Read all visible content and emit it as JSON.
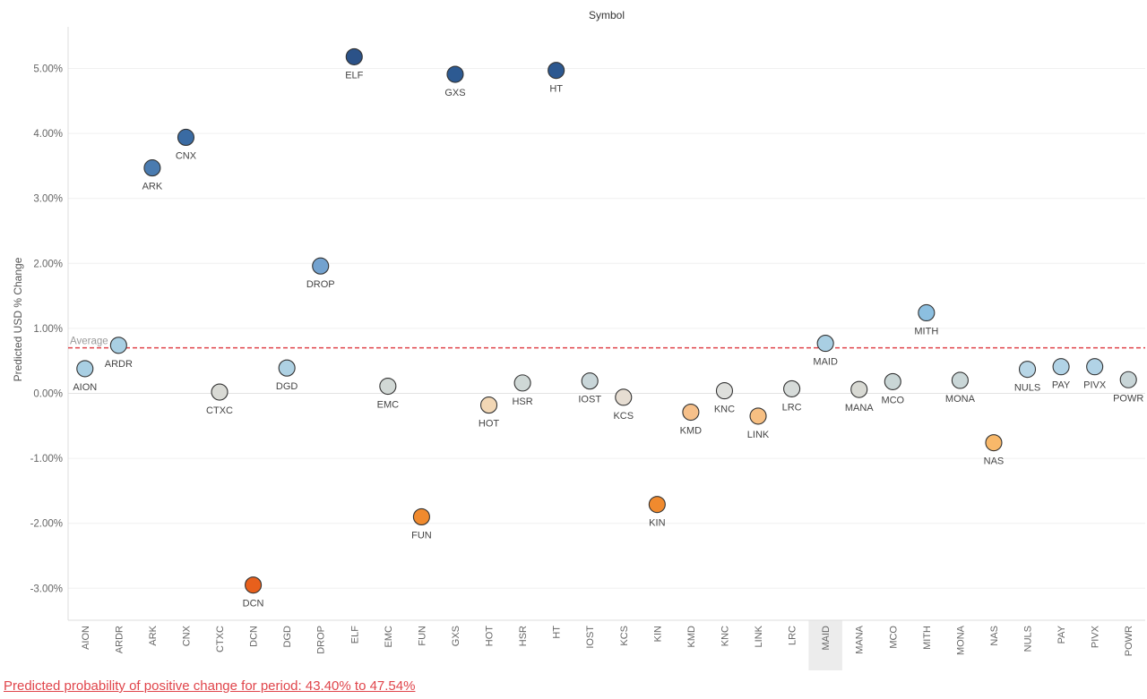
{
  "chart_data": {
    "type": "scatter",
    "title": "Symbol",
    "ylabel": "Predicted USD % Change",
    "xlabel": "",
    "ylim": [
      -3.5,
      5.6
    ],
    "yticks": [
      -3,
      -2,
      -1,
      0,
      1,
      2,
      3,
      4,
      5
    ],
    "ytick_labels": [
      "-3.00%",
      "-2.00%",
      "-1.00%",
      "0.00%",
      "1.00%",
      "2.00%",
      "3.00%",
      "4.00%",
      "5.00%"
    ],
    "grid": true,
    "categories": [
      "AION",
      "ARDR",
      "ARK",
      "CNX",
      "CTXC",
      "DCN",
      "DGD",
      "DROP",
      "ELF",
      "EMC",
      "FUN",
      "GXS",
      "HOT",
      "HSR",
      "HT",
      "IOST",
      "KCS",
      "KIN",
      "KMD",
      "KNC",
      "LINK",
      "LRC",
      "MAID",
      "MANA",
      "MCO",
      "MITH",
      "MONA",
      "NAS",
      "NULS",
      "PAY",
      "PIVX",
      "POWR"
    ],
    "values": [
      0.38,
      0.74,
      3.47,
      3.94,
      0.02,
      -2.95,
      0.39,
      1.96,
      5.18,
      0.11,
      -1.9,
      4.91,
      -0.18,
      0.16,
      4.97,
      0.19,
      -0.06,
      -1.71,
      -0.29,
      0.04,
      -0.35,
      0.07,
      0.77,
      0.06,
      0.18,
      1.24,
      0.2,
      -0.76,
      0.37,
      0.41,
      0.41,
      0.21
    ],
    "colors": [
      "#a9cfe3",
      "#a9cfe3",
      "#4a7bb0",
      "#3a6ba3",
      "#d9dad5",
      "#e8601c",
      "#aed1e3",
      "#73a2cf",
      "#2b5288",
      "#d1d8d5",
      "#f08a2e",
      "#2d5a92",
      "#f2d7b5",
      "#cfd8d6",
      "#2c5890",
      "#c9d6d9",
      "#e6ddd2",
      "#f08a2e",
      "#f6c08a",
      "#dedfdc",
      "#f7bf82",
      "#d6dbd9",
      "#a9cfe3",
      "#d8d9d3",
      "#c9d6d6",
      "#8cbfe0",
      "#cad7d8",
      "#f8b86a",
      "#b8d6e6",
      "#b1d3e6",
      "#b1d3e6",
      "#c8d5d7"
    ],
    "label_below": [
      true,
      true,
      true,
      true,
      true,
      true,
      true,
      true,
      true,
      true,
      true,
      true,
      true,
      true,
      true,
      true,
      true,
      true,
      true,
      true,
      true,
      true,
      true,
      true,
      true,
      true,
      true,
      true,
      true,
      true,
      true,
      true
    ],
    "reference_line": {
      "label": "Average",
      "value": 0.7,
      "color": "#e0454b"
    },
    "highlighted_category": "MAID"
  },
  "footer": {
    "text": "Predicted probability of positive change for period:  43.40% to 47.54%"
  }
}
